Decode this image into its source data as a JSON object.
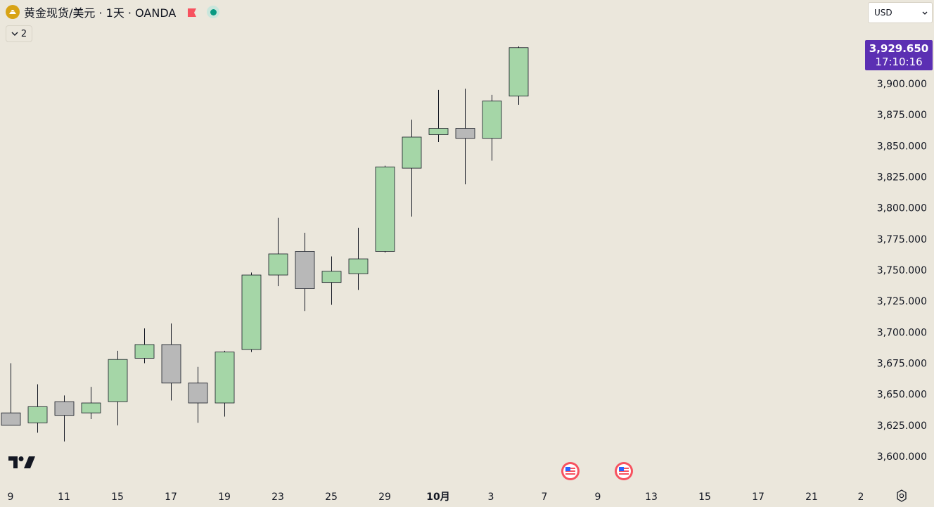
{
  "header": {
    "symbol_title": "黄金现货/美元 · 1天 · OANDA",
    "collapse_count": "2",
    "currency": "USD"
  },
  "price_label": {
    "price": "3,929.650",
    "countdown": "17:10:16"
  },
  "colors": {
    "background": "#ebe7dc",
    "up_candle": "#a5d6a7",
    "down_candle": "#b8b8b8",
    "price_label": "#5b2fb3",
    "text": "#131722"
  },
  "chart_data": {
    "type": "candlestick",
    "x_labels": [
      "9",
      "11",
      "15",
      "17",
      "19",
      "23",
      "25",
      "29",
      "10月",
      "3",
      "7",
      "9",
      "13",
      "15",
      "17",
      "21",
      "2"
    ],
    "y_ticks": [
      "3,600.000",
      "3,625.000",
      "3,650.000",
      "3,675.000",
      "3,700.000",
      "3,725.000",
      "3,750.000",
      "3,775.000",
      "3,800.000",
      "3,825.000",
      "3,850.000",
      "3,875.000",
      "3,900.000"
    ],
    "ylim": [
      3590,
      3950
    ],
    "candles": [
      {
        "open": 3635,
        "high": 3675,
        "low": 3625,
        "close": 3625
      },
      {
        "open": 3627,
        "high": 3658,
        "low": 3619,
        "close": 3640
      },
      {
        "open": 3644,
        "high": 3649,
        "low": 3612,
        "close": 3633
      },
      {
        "open": 3635,
        "high": 3656,
        "low": 3630,
        "close": 3643
      },
      {
        "open": 3644,
        "high": 3685,
        "low": 3625,
        "close": 3678
      },
      {
        "open": 3679,
        "high": 3703,
        "low": 3675,
        "close": 3690
      },
      {
        "open": 3690,
        "high": 3707,
        "low": 3645,
        "close": 3659
      },
      {
        "open": 3659,
        "high": 3672,
        "low": 3627,
        "close": 3643
      },
      {
        "open": 3643,
        "high": 3685,
        "low": 3632,
        "close": 3684
      },
      {
        "open": 3686,
        "high": 3748,
        "low": 3684,
        "close": 3746
      },
      {
        "open": 3746,
        "high": 3792,
        "low": 3737,
        "close": 3763
      },
      {
        "open": 3765,
        "high": 3780,
        "low": 3717,
        "close": 3735
      },
      {
        "open": 3740,
        "high": 3761,
        "low": 3722,
        "close": 3749
      },
      {
        "open": 3747,
        "high": 3784,
        "low": 3734,
        "close": 3759
      },
      {
        "open": 3765,
        "high": 3834,
        "low": 3764,
        "close": 3833
      },
      {
        "open": 3832,
        "high": 3871,
        "low": 3793,
        "close": 3857
      },
      {
        "open": 3859,
        "high": 3895,
        "low": 3853,
        "close": 3864
      },
      {
        "open": 3864,
        "high": 3896,
        "low": 3819,
        "close": 3856
      },
      {
        "open": 3856,
        "high": 3891,
        "low": 3838,
        "close": 3886
      },
      {
        "open": 3890,
        "high": 3930,
        "low": 3883,
        "close": 3929
      }
    ]
  }
}
